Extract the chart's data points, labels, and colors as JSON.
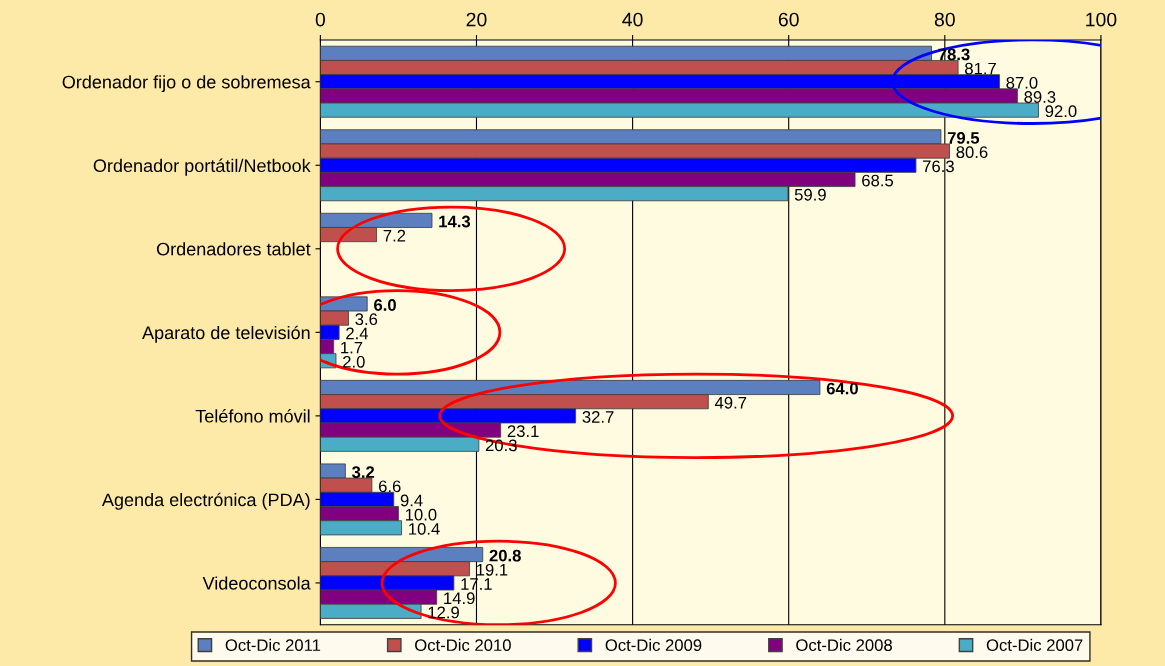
{
  "chart_data": {
    "type": "bar",
    "orientation": "horizontal",
    "categories": [
      "Ordenador fijo o de sobremesa",
      "Ordenador portátil/Netbook",
      "Ordenadores tablet",
      "Aparato de televisión",
      "Teléfono móvil",
      "Agenda electrónica (PDA)",
      "Videoconsola"
    ],
    "series": [
      {
        "name": "Oct-Dic 2011",
        "color": "#5b7fbf",
        "values": [
          78.3,
          79.5,
          14.3,
          6.0,
          64.0,
          3.2,
          20.8
        ],
        "value_labels": [
          "78.3",
          "79.5",
          "14.3",
          "6.0",
          "64.0",
          "3.2",
          "20.8"
        ]
      },
      {
        "name": "Oct-Dic 2010",
        "color": "#c0504d",
        "values": [
          81.7,
          80.6,
          7.2,
          3.6,
          49.7,
          6.6,
          19.1
        ],
        "value_labels": [
          "81.7",
          "80.6",
          "7.2",
          "3.6",
          "49.7",
          "6.6",
          "19.1"
        ]
      },
      {
        "name": "Oct-Dic 2009",
        "color": "#0000ff",
        "values": [
          87.0,
          76.3,
          null,
          2.4,
          32.7,
          9.4,
          17.1
        ],
        "value_labels": [
          "87.0",
          "76.3",
          null,
          "2.4",
          "32.7",
          "9.4",
          "17.1"
        ]
      },
      {
        "name": "Oct-Dic 2008",
        "color": "#800080",
        "values": [
          89.3,
          68.5,
          null,
          1.7,
          23.1,
          10.0,
          14.9
        ],
        "value_labels": [
          "89.3",
          "68.5",
          null,
          "1.7",
          "23.1",
          "10.0",
          "14.9"
        ]
      },
      {
        "name": "Oct-Dic 2007",
        "color": "#4bacc6",
        "values": [
          92.0,
          59.9,
          null,
          2.0,
          20.3,
          10.4,
          12.9
        ],
        "value_labels": [
          "92.0",
          "59.9",
          null,
          "2.0",
          "20.3",
          "10.4",
          "12.9"
        ]
      }
    ],
    "xlim": [
      0,
      100
    ],
    "xticks": [
      0,
      20,
      40,
      60,
      80,
      100
    ],
    "grid": "x",
    "legend": "bottom"
  }
}
